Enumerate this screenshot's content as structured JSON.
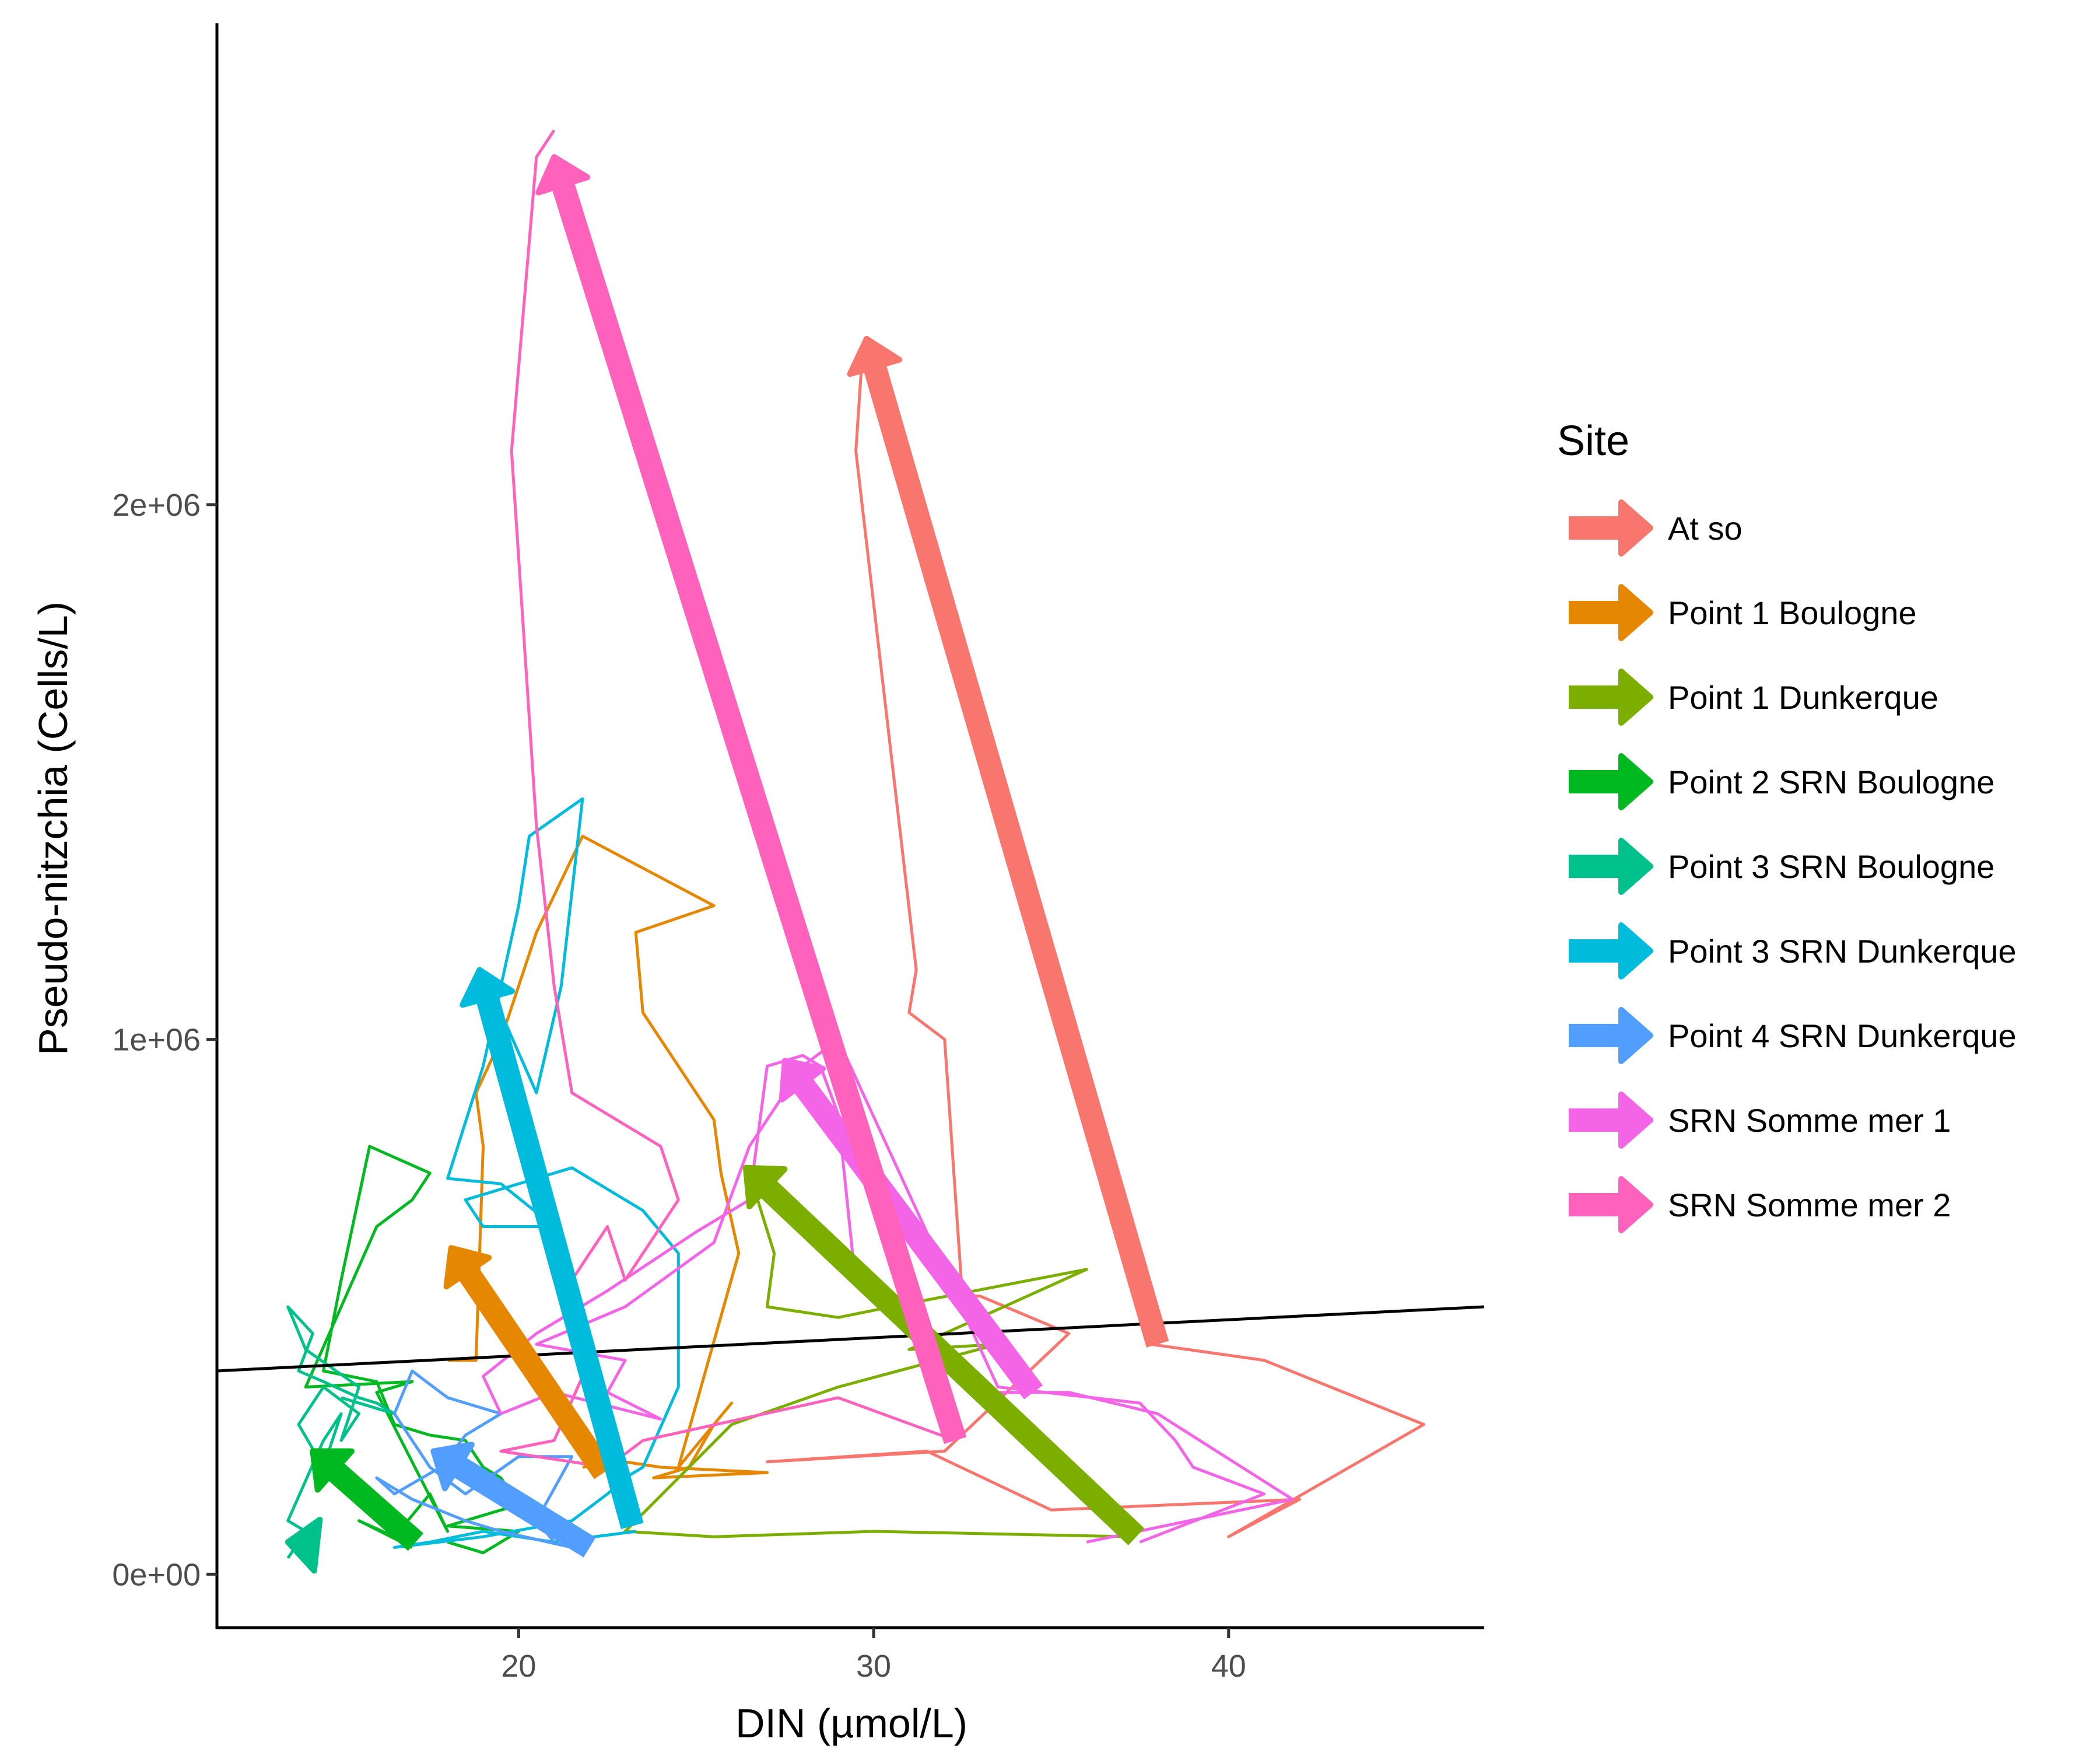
{
  "chart_data": {
    "type": "line",
    "title": "",
    "xlabel": "DIN (µmol/L)",
    "ylabel": "Pseudo-nitzchia (Cells/L)",
    "xlim": [
      11.5,
      47.2
    ],
    "ylim": [
      -100000,
      2900000
    ],
    "x_ticks": [
      {
        "value": 20,
        "label": "20"
      },
      {
        "value": 30,
        "label": "30"
      },
      {
        "value": 40,
        "label": "40"
      }
    ],
    "y_ticks": [
      {
        "value": 0,
        "label": "0e+00"
      },
      {
        "value": 1000000,
        "label": "1e+06"
      },
      {
        "value": 2000000,
        "label": "2e+06"
      }
    ],
    "grid": false,
    "legend_title": "Site",
    "legend_position": "right",
    "trend_line": {
      "color": "#000000",
      "from": [
        11.5,
        380000
      ],
      "to": [
        47.2,
        500000
      ]
    },
    "series": [
      {
        "name": "At so",
        "color": "#F8766D",
        "path": [
          [
            37.8,
            430000
          ],
          [
            41.0,
            400000
          ],
          [
            45.5,
            280000
          ],
          [
            40.0,
            70000
          ],
          [
            42.0,
            140000
          ],
          [
            35.0,
            120000
          ],
          [
            31.5,
            230000
          ],
          [
            27.0,
            210000
          ],
          [
            32.0,
            230000
          ],
          [
            35.5,
            450000
          ],
          [
            33.0,
            520000
          ],
          [
            32.5,
            520000
          ],
          [
            32.0,
            1000000
          ],
          [
            31.0,
            1050000
          ],
          [
            31.2,
            1130000
          ],
          [
            29.5,
            2100000
          ],
          [
            29.7,
            2300000
          ]
        ],
        "arrow": {
          "from": [
            38.0,
            430000
          ],
          "to": [
            29.8,
            2310000
          ]
        }
      },
      {
        "name": "Point 1 Boulogne",
        "color": "#E58700",
        "path": [
          [
            18.0,
            400000
          ],
          [
            18.8,
            400000
          ],
          [
            19.0,
            800000
          ],
          [
            18.8,
            900000
          ],
          [
            19.5,
            1000000
          ],
          [
            20.5,
            1200000
          ],
          [
            21.8,
            1380000
          ],
          [
            25.5,
            1250000
          ],
          [
            23.3,
            1200000
          ],
          [
            23.5,
            1050000
          ],
          [
            25.5,
            850000
          ],
          [
            25.7,
            750000
          ],
          [
            26.2,
            600000
          ],
          [
            24.5,
            200000
          ],
          [
            26.0,
            320000
          ],
          [
            25.5,
            280000
          ],
          [
            24.8,
            200000
          ],
          [
            23.8,
            180000
          ],
          [
            27.0,
            190000
          ],
          [
            24.0,
            200000
          ],
          [
            23.0,
            210000
          ],
          [
            21.8,
            200000
          ]
        ],
        "arrow": {
          "from": [
            22.4,
            190000
          ],
          "to": [
            18.1,
            610000
          ]
        }
      },
      {
        "name": "Point 1 Dunkerque",
        "color": "#7CAE00",
        "path": [
          [
            37.3,
            70000
          ],
          [
            30.0,
            80000
          ],
          [
            25.5,
            70000
          ],
          [
            23.0,
            80000
          ],
          [
            26.0,
            280000
          ],
          [
            29.0,
            350000
          ],
          [
            33.5,
            430000
          ],
          [
            31.0,
            420000
          ],
          [
            36.0,
            570000
          ],
          [
            30.5,
            500000
          ],
          [
            29.0,
            480000
          ],
          [
            27.0,
            500000
          ],
          [
            27.2,
            600000
          ],
          [
            26.5,
            750000
          ]
        ],
        "arrow": {
          "from": [
            37.4,
            70000
          ],
          "to": [
            26.4,
            760000
          ]
        }
      },
      {
        "name": "Point 2 SRN Boulogne",
        "color": "#00B81F",
        "path": [
          [
            17.0,
            50000
          ],
          [
            15.5,
            100000
          ],
          [
            16.5,
            70000
          ],
          [
            17.5,
            150000
          ],
          [
            18.0,
            80000
          ],
          [
            16.0,
            340000
          ],
          [
            17.0,
            360000
          ],
          [
            14.0,
            350000
          ],
          [
            16.0,
            650000
          ],
          [
            17.0,
            700000
          ],
          [
            17.5,
            750000
          ],
          [
            15.8,
            800000
          ],
          [
            15.0,
            550000
          ],
          [
            14.5,
            380000
          ],
          [
            16.0,
            360000
          ],
          [
            16.5,
            280000
          ],
          [
            17.5,
            260000
          ],
          [
            18.5,
            250000
          ],
          [
            19.0,
            200000
          ],
          [
            19.5,
            180000
          ],
          [
            20.0,
            130000
          ],
          [
            18.0,
            90000
          ],
          [
            20.0,
            80000
          ],
          [
            19.0,
            40000
          ],
          [
            18.0,
            60000
          ]
        ],
        "arrow": {
          "from": [
            17.1,
            60000
          ],
          "to": [
            14.2,
            230000
          ]
        }
      },
      {
        "name": "Point 3 SRN Boulogne",
        "color": "#00C08B",
        "path": [
          [
            13.5,
            30000
          ],
          [
            14.0,
            80000
          ],
          [
            13.5,
            100000
          ],
          [
            14.5,
            250000
          ],
          [
            15.0,
            300000
          ],
          [
            14.5,
            200000
          ],
          [
            13.8,
            280000
          ],
          [
            14.5,
            350000
          ],
          [
            15.5,
            300000
          ],
          [
            15.0,
            250000
          ],
          [
            15.5,
            350000
          ],
          [
            14.0,
            420000
          ],
          [
            13.5,
            500000
          ],
          [
            14.2,
            450000
          ],
          [
            13.8,
            380000
          ],
          [
            14.5,
            360000
          ],
          [
            15.5,
            330000
          ],
          [
            16.0,
            320000
          ],
          [
            16.5,
            300000
          ],
          [
            15.0,
            330000
          ]
        ],
        "arrow": {
          "from": [
            14.2,
            55000
          ],
          "to": [
            13.5,
            60000
          ]
        }
      },
      {
        "name": "Point 3 SRN Dunkerque",
        "color": "#00BBDB",
        "path": [
          [
            23.3,
            80000
          ],
          [
            21.0,
            60000
          ],
          [
            19.0,
            80000
          ],
          [
            17.5,
            60000
          ],
          [
            16.5,
            50000
          ],
          [
            19.0,
            70000
          ],
          [
            21.5,
            100000
          ],
          [
            22.5,
            150000
          ],
          [
            23.0,
            180000
          ],
          [
            23.5,
            200000
          ],
          [
            24.5,
            350000
          ],
          [
            24.5,
            600000
          ],
          [
            23.5,
            680000
          ],
          [
            21.5,
            760000
          ],
          [
            18.5,
            700000
          ],
          [
            19.0,
            650000
          ],
          [
            21.0,
            650000
          ],
          [
            19.5,
            730000
          ],
          [
            18.0,
            740000
          ],
          [
            19.0,
            950000
          ],
          [
            20.0,
            1250000
          ],
          [
            20.3,
            1380000
          ],
          [
            21.8,
            1450000
          ],
          [
            21.2,
            1100000
          ],
          [
            20.5,
            900000
          ],
          [
            19.5,
            1050000
          ],
          [
            19.0,
            1100000
          ]
        ],
        "arrow": {
          "from": [
            23.2,
            90000
          ],
          "to": [
            18.9,
            1130000
          ]
        }
      },
      {
        "name": "Point 4 SRN Dunkerque",
        "color": "#529EFF",
        "path": [
          [
            21.5,
            50000
          ],
          [
            19.5,
            80000
          ],
          [
            18.5,
            100000
          ],
          [
            17.0,
            140000
          ],
          [
            16.0,
            180000
          ],
          [
            16.5,
            150000
          ],
          [
            17.8,
            200000
          ],
          [
            18.5,
            260000
          ],
          [
            19.5,
            300000
          ],
          [
            18.0,
            330000
          ],
          [
            17.0,
            380000
          ],
          [
            16.5,
            300000
          ],
          [
            17.5,
            200000
          ],
          [
            18.5,
            150000
          ],
          [
            20.0,
            220000
          ],
          [
            21.5,
            220000
          ],
          [
            20.5,
            100000
          ],
          [
            21.0,
            60000
          ]
        ],
        "arrow": {
          "from": [
            22.0,
            50000
          ],
          "to": [
            17.6,
            230000
          ]
        }
      },
      {
        "name": "SRN Somme mer 1",
        "color": "#F365E6",
        "path": [
          [
            36.0,
            60000
          ],
          [
            41.8,
            140000
          ],
          [
            38.0,
            300000
          ],
          [
            35.5,
            340000
          ],
          [
            33.0,
            340000
          ],
          [
            30.0,
            520000
          ],
          [
            29.5,
            540000
          ],
          [
            29.0,
            860000
          ],
          [
            28.5,
            950000
          ],
          [
            28.0,
            970000
          ],
          [
            27.0,
            950000
          ],
          [
            26.5,
            700000
          ],
          [
            25.0,
            640000
          ],
          [
            22.5,
            530000
          ],
          [
            20.5,
            450000
          ],
          [
            19.0,
            370000
          ],
          [
            19.5,
            300000
          ],
          [
            21.0,
            340000
          ],
          [
            24.0,
            290000
          ],
          [
            22.5,
            340000
          ],
          [
            23.0,
            400000
          ],
          [
            20.5,
            430000
          ],
          [
            23.0,
            500000
          ],
          [
            25.5,
            620000
          ],
          [
            26.5,
            800000
          ],
          [
            28.0,
            950000
          ],
          [
            29.0,
            1000000
          ],
          [
            33.5,
            350000
          ],
          [
            37.5,
            320000
          ],
          [
            38.5,
            250000
          ],
          [
            39.0,
            200000
          ],
          [
            41.0,
            150000
          ],
          [
            37.5,
            60000
          ]
        ],
        "arrow": {
          "from": [
            34.5,
            340000
          ],
          "to": [
            27.5,
            960000
          ]
        }
      },
      {
        "name": "SRN Somme mer 2",
        "color": "#FF62BC",
        "path": [
          [
            32.3,
            250000
          ],
          [
            29.0,
            330000
          ],
          [
            23.5,
            250000
          ],
          [
            22.5,
            200000
          ],
          [
            19.5,
            230000
          ],
          [
            21.0,
            250000
          ],
          [
            22.0,
            400000
          ],
          [
            21.5,
            550000
          ],
          [
            22.0,
            600000
          ],
          [
            22.5,
            650000
          ],
          [
            23.0,
            550000
          ],
          [
            24.5,
            700000
          ],
          [
            24.0,
            800000
          ],
          [
            21.5,
            900000
          ],
          [
            21.0,
            1100000
          ],
          [
            20.5,
            1400000
          ],
          [
            20.0,
            1900000
          ],
          [
            19.8,
            2100000
          ],
          [
            20.5,
            2650000
          ],
          [
            21.0,
            2700000
          ]
        ],
        "arrow": {
          "from": [
            32.3,
            250000
          ],
          "to": [
            21.0,
            2650000
          ]
        }
      }
    ]
  }
}
